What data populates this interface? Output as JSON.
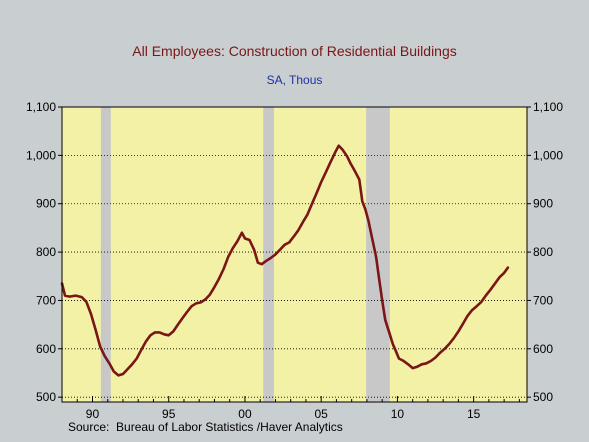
{
  "chart_data": {
    "type": "line",
    "title": "All Employees: Construction of Residential Buildings",
    "subtitle": "SA, Thous",
    "source": "Source:  Bureau of Labor Statistics /Haver Analytics",
    "xlabel": "",
    "ylabel": "",
    "xlim": [
      1988.0,
      2018.5
    ],
    "ylim": [
      490,
      1100
    ],
    "y_ticks": [
      500,
      600,
      700,
      800,
      900,
      1000,
      1100
    ],
    "y_tick_labels": [
      "500",
      "600",
      "700",
      "800",
      "900",
      "1,000",
      "1,100"
    ],
    "x_ticks": [
      1990,
      1995,
      2000,
      2005,
      2010,
      2015
    ],
    "x_tick_labels": [
      "90",
      "95",
      "00",
      "05",
      "10",
      "15"
    ],
    "grid": "horizontal-dotted",
    "colors": {
      "plot_background": "#f3f1a6",
      "recession_band": "#c8c8c8",
      "line": "#7a1616",
      "title": "#7a1616",
      "subtitle": "#2030a0",
      "page_background": "#c9ced1"
    },
    "recessions": [
      {
        "start": 1990.55,
        "end": 1991.2
      },
      {
        "start": 2001.2,
        "end": 2001.9
      },
      {
        "start": 2007.95,
        "end": 2009.5
      }
    ],
    "series": [
      {
        "values": [
          [
            1988.0,
            735
          ],
          [
            1988.2,
            710
          ],
          [
            1988.5,
            708
          ],
          [
            1988.9,
            710
          ],
          [
            1989.3,
            707
          ],
          [
            1989.6,
            697
          ],
          [
            1989.9,
            672
          ],
          [
            1990.2,
            640
          ],
          [
            1990.5,
            605
          ],
          [
            1990.8,
            585
          ],
          [
            1991.1,
            570
          ],
          [
            1991.4,
            553
          ],
          [
            1991.7,
            545
          ],
          [
            1992.0,
            548
          ],
          [
            1992.3,
            558
          ],
          [
            1992.6,
            568
          ],
          [
            1992.9,
            580
          ],
          [
            1993.2,
            598
          ],
          [
            1993.5,
            615
          ],
          [
            1993.8,
            628
          ],
          [
            1994.1,
            634
          ],
          [
            1994.4,
            634
          ],
          [
            1994.7,
            630
          ],
          [
            1995.0,
            628
          ],
          [
            1995.3,
            636
          ],
          [
            1995.6,
            650
          ],
          [
            1995.9,
            663
          ],
          [
            1996.2,
            676
          ],
          [
            1996.5,
            688
          ],
          [
            1996.8,
            694
          ],
          [
            1997.1,
            696
          ],
          [
            1997.4,
            702
          ],
          [
            1997.7,
            712
          ],
          [
            1998.0,
            728
          ],
          [
            1998.3,
            745
          ],
          [
            1998.6,
            765
          ],
          [
            1998.9,
            790
          ],
          [
            1999.2,
            808
          ],
          [
            1999.5,
            822
          ],
          [
            1999.8,
            840
          ],
          [
            2000.0,
            828
          ],
          [
            2000.3,
            825
          ],
          [
            2000.6,
            805
          ],
          [
            2000.85,
            778
          ],
          [
            2001.1,
            775
          ],
          [
            2001.4,
            782
          ],
          [
            2001.7,
            788
          ],
          [
            2002.0,
            795
          ],
          [
            2002.3,
            805
          ],
          [
            2002.6,
            815
          ],
          [
            2002.9,
            820
          ],
          [
            2003.2,
            832
          ],
          [
            2003.5,
            845
          ],
          [
            2003.8,
            862
          ],
          [
            2004.1,
            878
          ],
          [
            2004.4,
            900
          ],
          [
            2004.7,
            922
          ],
          [
            2005.0,
            945
          ],
          [
            2005.3,
            965
          ],
          [
            2005.6,
            985
          ],
          [
            2005.9,
            1005
          ],
          [
            2006.15,
            1020
          ],
          [
            2006.4,
            1012
          ],
          [
            2006.7,
            998
          ],
          [
            2006.9,
            985
          ],
          [
            2007.2,
            968
          ],
          [
            2007.5,
            950
          ],
          [
            2007.7,
            905
          ],
          [
            2007.9,
            888
          ],
          [
            2008.1,
            865
          ],
          [
            2008.4,
            820
          ],
          [
            2008.6,
            790
          ],
          [
            2008.8,
            745
          ],
          [
            2009.0,
            700
          ],
          [
            2009.2,
            660
          ],
          [
            2009.5,
            630
          ],
          [
            2009.7,
            610
          ],
          [
            2009.9,
            595
          ],
          [
            2010.1,
            580
          ],
          [
            2010.4,
            575
          ],
          [
            2010.7,
            568
          ],
          [
            2011.0,
            560
          ],
          [
            2011.3,
            563
          ],
          [
            2011.6,
            568
          ],
          [
            2011.9,
            570
          ],
          [
            2012.2,
            575
          ],
          [
            2012.5,
            582
          ],
          [
            2012.8,
            592
          ],
          [
            2013.1,
            600
          ],
          [
            2013.4,
            610
          ],
          [
            2013.7,
            622
          ],
          [
            2014.0,
            636
          ],
          [
            2014.3,
            652
          ],
          [
            2014.6,
            668
          ],
          [
            2014.9,
            680
          ],
          [
            2015.2,
            688
          ],
          [
            2015.5,
            697
          ],
          [
            2015.8,
            710
          ],
          [
            2016.1,
            722
          ],
          [
            2016.4,
            735
          ],
          [
            2016.7,
            748
          ],
          [
            2017.0,
            757
          ],
          [
            2017.25,
            768
          ]
        ]
      }
    ]
  }
}
